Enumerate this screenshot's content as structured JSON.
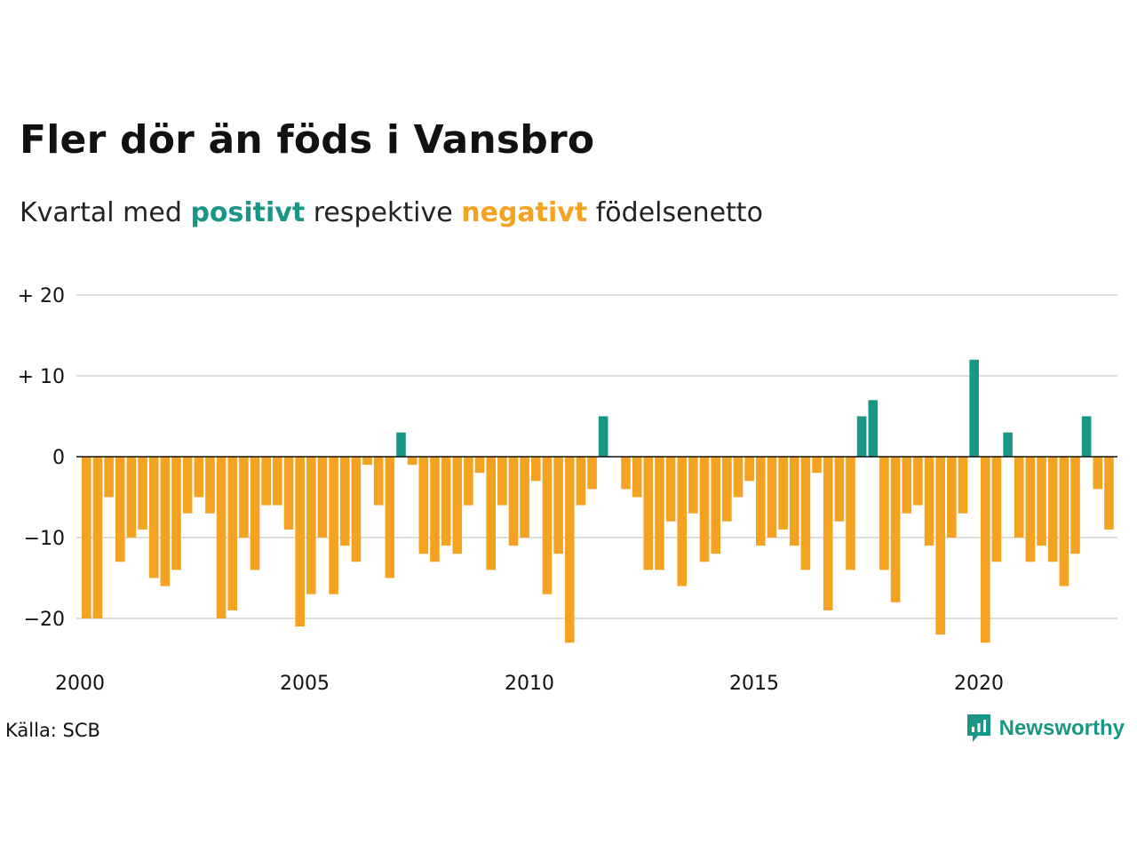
{
  "header": {
    "title": "Fler dör än föds i Vansbro",
    "subtitle_prefix": "Kvartal med",
    "subtitle_positive": "positivt",
    "subtitle_middle": "respektive",
    "subtitle_negative": "negativt",
    "subtitle_suffix": "födelsenetto"
  },
  "footer": {
    "source": "Källa: SCB",
    "brand": "Newsworthy"
  },
  "colors": {
    "positive": "#1a9686",
    "negative": "#f4a21f",
    "grid": "#dddddd",
    "zero_line": "#111111"
  },
  "icons": [
    "newsworthy-logo-icon"
  ],
  "chart_data": {
    "type": "bar",
    "x_unit": "quarter",
    "x_start": "2000-Q1",
    "values": [
      -20,
      -20,
      -5,
      -13,
      -10,
      -9,
      -15,
      -16,
      -14,
      -7,
      -5,
      -7,
      -20,
      -19,
      -10,
      -14,
      -6,
      -6,
      -9,
      -21,
      -17,
      -10,
      -17,
      -11,
      -13,
      -1,
      -6,
      -15,
      3,
      -1,
      -12,
      -13,
      -11,
      -12,
      -6,
      -2,
      -14,
      -6,
      -11,
      -10,
      -3,
      -17,
      -12,
      -23,
      -6,
      -4,
      5,
      0,
      -4,
      -5,
      -14,
      -14,
      -8,
      -16,
      -7,
      -13,
      -12,
      -8,
      -5,
      -3,
      -11,
      -10,
      -9,
      -11,
      -14,
      -2,
      -19,
      -8,
      -14,
      5,
      7,
      -14,
      -18,
      -7,
      -6,
      -11,
      -22,
      -10,
      -7,
      12,
      -23,
      -13,
      3,
      -10,
      -13,
      -11,
      -13,
      -16,
      -12,
      5,
      -4,
      -9
    ],
    "x_ticks": [
      "2000",
      "2005",
      "2010",
      "2015",
      "2020"
    ],
    "y_ticks": [
      {
        "value": 20,
        "label": "+ 20"
      },
      {
        "value": 10,
        "label": "+ 10"
      },
      {
        "value": 0,
        "label": "0"
      },
      {
        "value": -10,
        "label": "−10"
      },
      {
        "value": -20,
        "label": "−20"
      }
    ],
    "ylim": [
      -25,
      20
    ],
    "grid": true,
    "legend": "in subtitle"
  }
}
